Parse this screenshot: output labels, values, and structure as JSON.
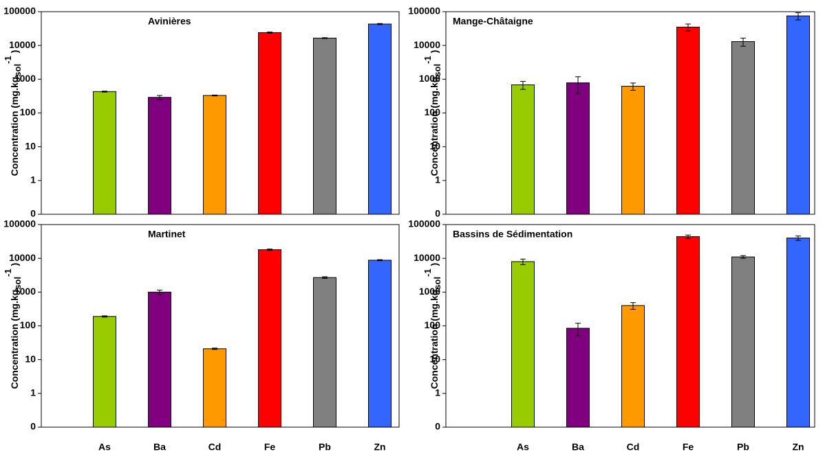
{
  "chart_data": [
    {
      "type": "bar",
      "title": "Avinières",
      "log_scale": true,
      "ylabel": {
        "main": "Concentration (mg.kg",
        "sub": "sol",
        "sup": "-1",
        "end": ")"
      },
      "values": [
        430,
        290,
        330,
        24000,
        16500,
        43000
      ],
      "errors": [
        15,
        40,
        10,
        1000,
        500,
        1500
      ],
      "colors": [
        "#99cc00",
        "#800080",
        "#ff9900",
        "#ff0000",
        "#808080",
        "#3366ff"
      ],
      "ylim": [
        0.1,
        100000
      ],
      "yticks": [
        {
          "value": 0.1,
          "label": "0"
        },
        1,
        10,
        100,
        1000,
        10000,
        100000
      ]
    },
    {
      "type": "bar",
      "title": "Mange-Châtaigne",
      "log_scale": true,
      "ylabel": {
        "main": "Concentration (mg.kg",
        "sub": "sol",
        "sup": "-1",
        "end": ")"
      },
      "values": [
        680,
        780,
        620,
        35000,
        13000,
        75000
      ],
      "errors": [
        180,
        400,
        150,
        8000,
        3500,
        18000
      ],
      "colors": [
        "#99cc00",
        "#800080",
        "#ff9900",
        "#ff0000",
        "#808080",
        "#3366ff"
      ],
      "ylim": [
        0.1,
        100000
      ],
      "yticks": [
        {
          "value": 0.1,
          "label": "0"
        },
        1,
        10,
        100,
        1000,
        10000,
        100000
      ]
    },
    {
      "type": "bar",
      "title": "Martinet",
      "log_scale": true,
      "ylabel": {
        "main": "Concentration (mg.kg",
        "sub": "sol",
        "sup": "-1",
        "end": ")"
      },
      "categories": [
        "As",
        "Ba",
        "Cd",
        "Fe",
        "Pb",
        "Zn"
      ],
      "values": [
        190,
        1000,
        21,
        18000,
        2700,
        8800
      ],
      "errors": [
        8,
        150,
        1,
        800,
        150,
        300
      ],
      "colors": [
        "#99cc00",
        "#800080",
        "#ff9900",
        "#ff0000",
        "#808080",
        "#3366ff"
      ],
      "ylim": [
        0.1,
        100000
      ],
      "yticks": [
        {
          "value": 0.1,
          "label": "0"
        },
        1,
        10,
        100,
        1000,
        10000,
        100000
      ]
    },
    {
      "type": "bar",
      "title": "Bassins de Sédimentation",
      "log_scale": true,
      "ylabel": {
        "main": "Concentration (mg.kg",
        "sub": "sol",
        "sup": "-1",
        "end": ")"
      },
      "categories": [
        "As",
        "Ba",
        "Cd",
        "Fe",
        "Pb",
        "Zn"
      ],
      "values": [
        8000,
        85,
        400,
        44000,
        11000,
        40000
      ],
      "errors": [
        1500,
        35,
        90,
        5000,
        1000,
        6000
      ],
      "colors": [
        "#99cc00",
        "#800080",
        "#ff9900",
        "#ff0000",
        "#808080",
        "#3366ff"
      ],
      "ylim": [
        0.1,
        100000
      ],
      "yticks": [
        {
          "value": 0.1,
          "label": "0"
        },
        1,
        10,
        100,
        1000,
        10000,
        100000
      ]
    }
  ]
}
